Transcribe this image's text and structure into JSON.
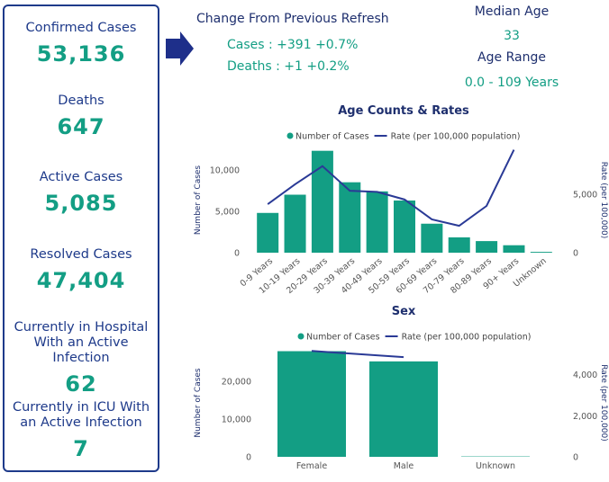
{
  "panel": {
    "stats": [
      {
        "label": "Confirmed Cases",
        "value": "53,136"
      },
      {
        "label": "Deaths",
        "value": "647"
      },
      {
        "label": "Active Cases",
        "value": "5,085"
      },
      {
        "label": "Resolved Cases",
        "value": "47,404"
      },
      {
        "label": "Currently in Hospital With an Active Infection",
        "value": "62"
      },
      {
        "label": "Currently in ICU With an Active Infection",
        "value": "7"
      }
    ]
  },
  "change": {
    "title": "Change From Previous Refresh",
    "lines": [
      "Cases : +391 +0.7%",
      "Deaths : +1 +0.2%"
    ]
  },
  "age": {
    "median_label": "Median Age",
    "median": "33",
    "range_label": "Age Range",
    "range": "0.0 - 109 Years"
  },
  "chart_data": [
    {
      "type": "bar-line",
      "title": "Age Counts & Rates",
      "categories": [
        "0-9 Years",
        "10-19 Years",
        "20-29 Years",
        "30-39 Years",
        "40-49 Years",
        "50-59 Years",
        "60-69 Years",
        "70-79 Years",
        "80-89 Years",
        "90+ Years",
        "Unknown"
      ],
      "series": [
        {
          "name": "Number of Cases",
          "color": "#139e84",
          "values": [
            4800,
            7000,
            12300,
            8500,
            7400,
            6300,
            3500,
            1850,
            1400,
            900,
            100
          ]
        },
        {
          "name": "Rate (per 100,000 population)",
          "color": "#2a3a96",
          "axis": "y2",
          "values": [
            4150,
            5850,
            7400,
            5300,
            5200,
            4550,
            2850,
            2300,
            4000,
            8800,
            null
          ]
        }
      ],
      "ylabel": "Number of Cases",
      "y2label": "Rate (per 100,000)",
      "ylim": [
        0,
        12700
      ],
      "yticks": [
        0,
        {
          "value": 5000,
          "label": "5,000"
        },
        {
          "value": 10000,
          "label": "10,000"
        }
      ],
      "y2lim": [
        0,
        9000
      ],
      "y2ticks": [
        0,
        {
          "value": 5000,
          "label": "5,000"
        }
      ]
    },
    {
      "type": "bar-line",
      "title": "Sex",
      "categories": [
        "Female",
        "Male",
        "Unknown"
      ],
      "series": [
        {
          "name": "Number of Cases",
          "color": "#139e84",
          "values": [
            27900,
            25200,
            100
          ]
        },
        {
          "name": "Rate (per 100,000 population)",
          "color": "#2a3a96",
          "axis": "y2",
          "values": [
            5150,
            4850,
            null
          ]
        }
      ],
      "ylabel": "Number of Cases",
      "y2label": "Rate (per 100,000)",
      "ylim": [
        0,
        28500
      ],
      "yticks": [
        0,
        {
          "value": 10000,
          "label": "10,000"
        },
        {
          "value": 20000,
          "label": "20,000"
        }
      ],
      "y2lim": [
        0,
        5250
      ],
      "y2ticks": [
        0,
        {
          "value": 2000,
          "label": "2,000"
        },
        {
          "value": 4000,
          "label": "4,000"
        }
      ]
    }
  ]
}
